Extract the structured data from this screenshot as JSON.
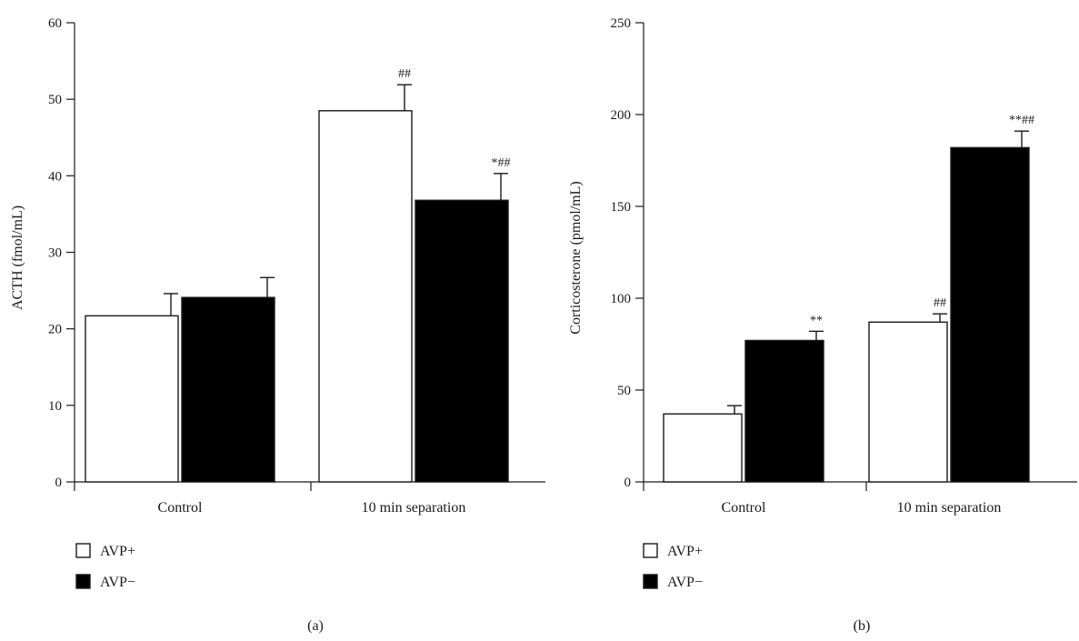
{
  "chart_data": [
    {
      "type": "bar",
      "panel_label": "(a)",
      "ylabel": "ACTH (fmol/mL)",
      "xlabel": "",
      "ylim": [
        0,
        60
      ],
      "yticks": [
        0,
        10,
        20,
        30,
        40,
        50,
        60
      ],
      "categories": [
        "Control",
        "10 min separation"
      ],
      "series": [
        {
          "name": "AVP+",
          "color": "#ffffff",
          "values": [
            21.7,
            48.5
          ],
          "errors": [
            2.9,
            3.4
          ],
          "annotations": [
            "",
            "##"
          ]
        },
        {
          "name": "AVP−",
          "color": "#000000",
          "values": [
            24.1,
            36.8
          ],
          "errors": [
            2.6,
            3.5
          ],
          "annotations": [
            "",
            "*##"
          ]
        }
      ],
      "legend": {
        "placement": "bottom-left",
        "items": [
          "AVP+",
          "AVP−"
        ]
      },
      "grid": false
    },
    {
      "type": "bar",
      "panel_label": "(b)",
      "ylabel": "Corticosterone (pmol/mL)",
      "xlabel": "",
      "ylim": [
        0,
        250
      ],
      "yticks": [
        0,
        50,
        100,
        150,
        200,
        250
      ],
      "categories": [
        "Control",
        "10 min separation"
      ],
      "series": [
        {
          "name": "AVP+",
          "color": "#ffffff",
          "values": [
            37,
            87
          ],
          "errors": [
            4.5,
            4.5
          ],
          "annotations": [
            "",
            "##"
          ]
        },
        {
          "name": "AVP−",
          "color": "#000000",
          "values": [
            77,
            182
          ],
          "errors": [
            5,
            9
          ],
          "annotations": [
            "**",
            "**##"
          ]
        }
      ],
      "legend": {
        "placement": "bottom-left",
        "items": [
          "AVP+",
          "AVP−"
        ]
      },
      "grid": false
    }
  ]
}
